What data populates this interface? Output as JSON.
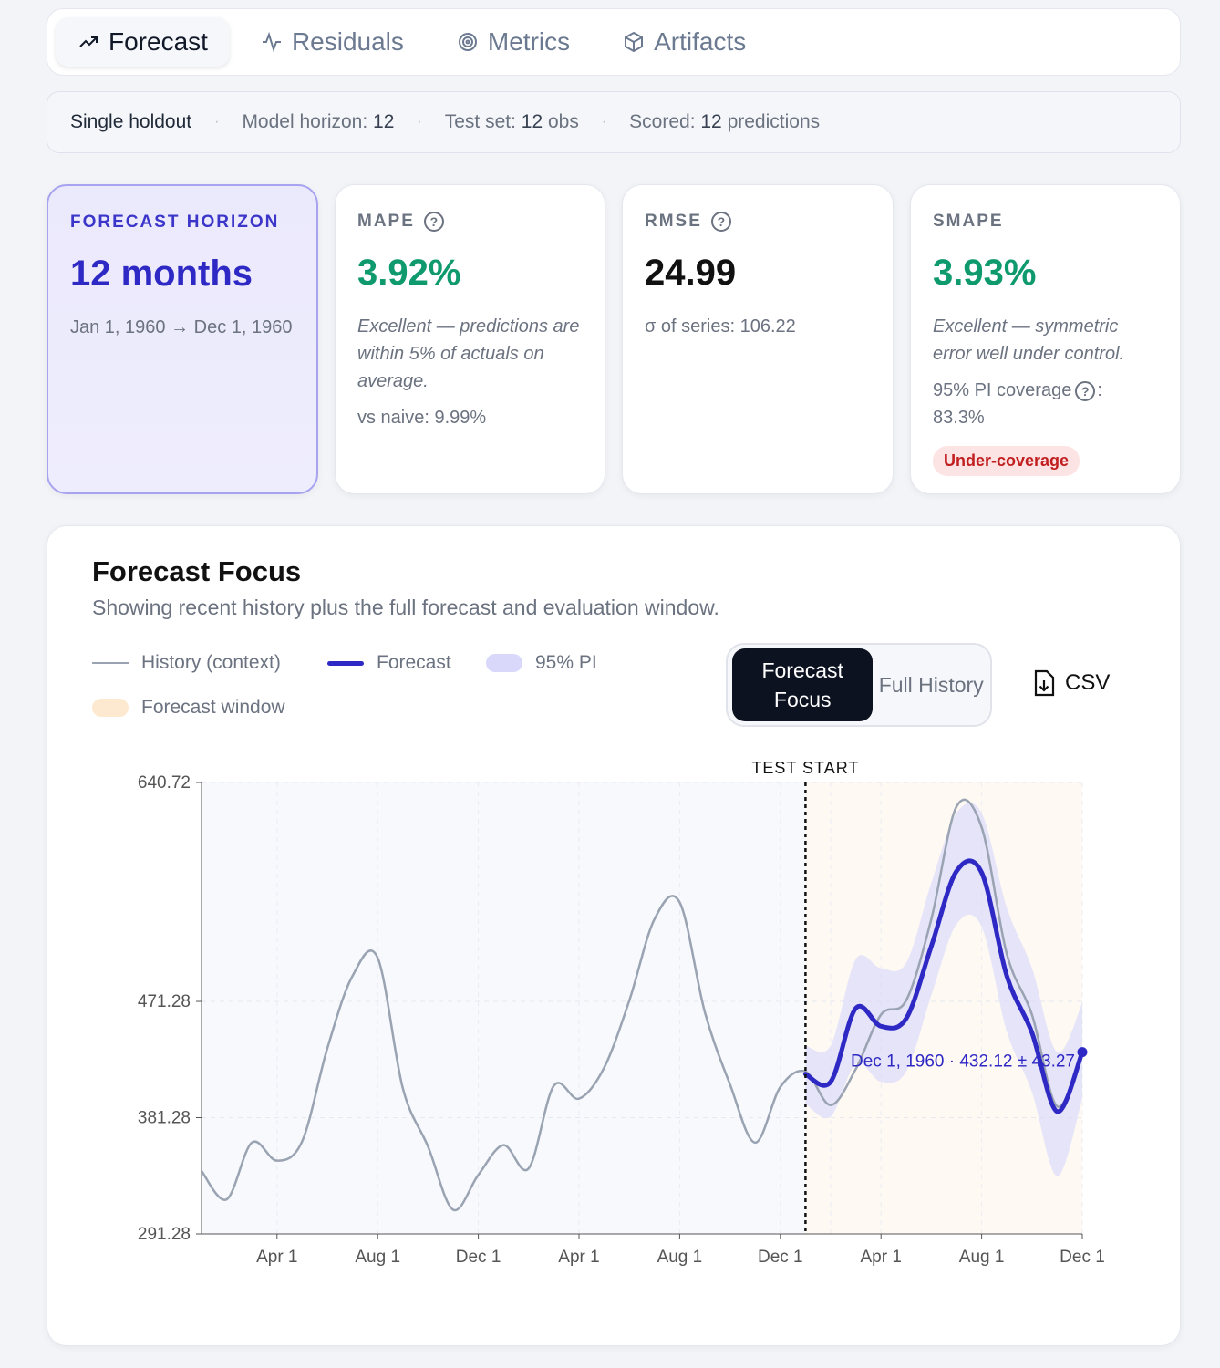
{
  "tabs": [
    {
      "label": "Forecast",
      "icon": "trending-up-icon",
      "active": true
    },
    {
      "label": "Residuals",
      "icon": "activity-icon",
      "active": false
    },
    {
      "label": "Metrics",
      "icon": "target-icon",
      "active": false
    },
    {
      "label": "Artifacts",
      "icon": "package-icon",
      "active": false
    }
  ],
  "infobar": {
    "mode": "Single holdout",
    "horizon_label": "Model horizon:",
    "horizon_value": "12",
    "test_label": "Test set:",
    "test_value": "12",
    "test_unit": "obs",
    "scored_label": "Scored:",
    "scored_value": "12",
    "scored_unit": "predictions",
    "separator": "·"
  },
  "cards": {
    "horizon": {
      "label": "FORECAST HORIZON",
      "value": "12 months",
      "range": "Jan 1, 1960 → Dec 1, 1960"
    },
    "mape": {
      "label": "MAPE",
      "value": "3.92%",
      "note": "Excellent — predictions are within 5% of actuals on average.",
      "extra": "vs naive: 9.99%"
    },
    "rmse": {
      "label": "RMSE",
      "value": "24.99",
      "sub": "σ of series: 106.22"
    },
    "smape": {
      "label": "SMAPE",
      "value": "3.93%",
      "note": "Excellent — symmetric error well under control.",
      "coverage_label": "95% PI coverage",
      "coverage_suffix": ":",
      "coverage_value": "83.3%",
      "badge": "Under-coverage"
    }
  },
  "panel": {
    "title": "Forecast Focus",
    "subtitle": "Showing recent history plus the full forecast and evaluation window.",
    "legend": {
      "history": "History (context)",
      "forecast": "Forecast",
      "pi": "95% PI",
      "window": "Forecast window"
    },
    "toggle": {
      "focus": "Forecast Focus",
      "full": "Full History"
    },
    "csv_label": "CSV"
  },
  "colors": {
    "accent": "#2e29c4",
    "history": "#9aa3b2",
    "pi": "#d9d8fb",
    "window": "#fde9cf",
    "good": "#0f9a6e",
    "bad": "#c11f1f"
  },
  "chart_data": {
    "type": "line",
    "ylim": [
      291.28,
      640.72
    ],
    "yticks": [
      640.72,
      471.28,
      381.28,
      291.28
    ],
    "xticks": [
      {
        "label": "Apr 1",
        "t": 3
      },
      {
        "label": "Aug 1",
        "t": 7
      },
      {
        "label": "Dec 1",
        "t": 11
      },
      {
        "label": "Apr 1",
        "t": 15
      },
      {
        "label": "Aug 1",
        "t": 19
      },
      {
        "label": "Dec 1",
        "t": 23
      },
      {
        "label": "Apr 1",
        "t": 27
      },
      {
        "label": "Aug 1",
        "t": 31
      },
      {
        "label": "Dec 1",
        "t": 35
      }
    ],
    "test_start_label": "TEST START",
    "test_start_t": 24,
    "history": [
      340,
      318,
      362,
      348,
      363,
      435,
      491,
      505,
      404,
      359,
      310,
      337,
      360,
      342,
      406,
      396,
      420,
      472,
      535,
      548,
      463,
      407,
      362,
      405
    ],
    "actual_test": [
      417,
      391,
      419,
      461,
      472,
      535,
      622,
      606,
      508,
      461,
      390,
      432
    ],
    "forecast": [
      415,
      409,
      466,
      452,
      458,
      514,
      572,
      571,
      491,
      447,
      386,
      432
    ],
    "pi_lower": [
      392,
      382,
      423,
      409,
      417,
      476,
      531,
      529,
      448,
      401,
      336,
      396
    ],
    "pi_upper": [
      437,
      437,
      504,
      497,
      501,
      563,
      617,
      617,
      544,
      497,
      432,
      470
    ],
    "annotation": "Dec 1, 1960 · 432.12 ± 43.27"
  }
}
